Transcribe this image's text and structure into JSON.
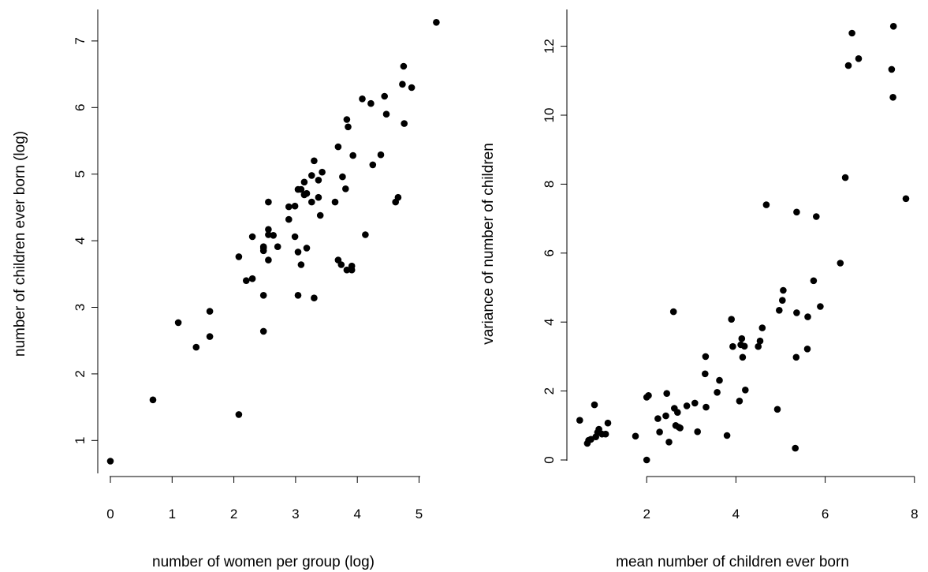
{
  "chart_data": [
    {
      "type": "scatter",
      "title": "",
      "xlabel": "number of women per group (log)",
      "ylabel": "number of children ever born (log)",
      "xlim": [
        0,
        5.3
      ],
      "ylim": [
        0.7,
        7.3
      ],
      "xticks": [
        "0",
        "1",
        "2",
        "3",
        "4",
        "5"
      ],
      "yticks": [
        "1",
        "2",
        "3",
        "4",
        "5",
        "6",
        "7"
      ],
      "grid": false,
      "series": [
        {
          "x": [
            0,
            0.69,
            1.1,
            1.39,
            1.61,
            1.61,
            2.08,
            2.08,
            2.2,
            2.3,
            2.3,
            2.48,
            2.48,
            2.48,
            2.48,
            2.48,
            2.56,
            2.56,
            2.56,
            2.56,
            2.64,
            2.71,
            2.89,
            2.89,
            2.99,
            2.99,
            3.04,
            3.04,
            3.04,
            3.09,
            3.09,
            3.14,
            3.14,
            3.18,
            3.18,
            3.26,
            3.26,
            3.3,
            3.3,
            3.37,
            3.37,
            3.4,
            3.43,
            3.64,
            3.69,
            3.69,
            3.74,
            3.76,
            3.81,
            3.83,
            3.83,
            3.85,
            3.91,
            3.91,
            3.93,
            4.08,
            4.13,
            4.22,
            4.25,
            4.38,
            4.44,
            4.47,
            4.62,
            4.66,
            4.73,
            4.75,
            4.76,
            4.88,
            5.28
          ],
          "y": [
            0.69,
            1.61,
            2.77,
            2.4,
            2.56,
            2.94,
            1.39,
            3.76,
            3.4,
            3.43,
            4.06,
            2.64,
            3.18,
            3.85,
            3.89,
            3.91,
            3.71,
            4.09,
            4.17,
            4.58,
            4.08,
            3.91,
            4.32,
            4.51,
            4.06,
            4.52,
            3.18,
            3.83,
            4.77,
            3.64,
            4.77,
            4.69,
            4.88,
            3.89,
            4.71,
            4.58,
            4.98,
            3.14,
            5.2,
            4.65,
            4.91,
            4.38,
            5.03,
            4.58,
            3.71,
            5.41,
            3.64,
            4.96,
            4.78,
            5.82,
            3.56,
            5.71,
            3.56,
            3.62,
            5.28,
            6.13,
            4.09,
            6.06,
            5.14,
            5.29,
            6.17,
            5.9,
            4.58,
            4.65,
            6.35,
            6.62,
            5.76,
            6.3,
            7.28
          ]
        }
      ]
    },
    {
      "type": "scatter",
      "title": "",
      "xlabel": "mean number of children ever born",
      "ylabel": "variance of number of children",
      "xlim": [
        0.5,
        7.8
      ],
      "ylim": [
        0,
        12.6
      ],
      "xticks": [
        "2",
        "4",
        "6",
        "8"
      ],
      "yticks": [
        "0",
        "2",
        "4",
        "6",
        "8",
        "10",
        "12"
      ],
      "grid": false,
      "series": [
        {
          "x": [
            0.5,
            0.67,
            0.7,
            0.75,
            0.83,
            0.86,
            0.9,
            0.93,
            1.0,
            1.08,
            1.13,
            1.75,
            2.0,
            2.0,
            2.04,
            2.25,
            2.29,
            2.43,
            2.45,
            2.5,
            2.6,
            2.62,
            2.65,
            2.69,
            2.72,
            2.75,
            2.9,
            3.08,
            3.14,
            3.31,
            3.32,
            3.33,
            3.58,
            3.63,
            3.8,
            3.9,
            3.93,
            4.08,
            4.11,
            4.13,
            4.15,
            4.19,
            4.21,
            4.5,
            4.54,
            4.59,
            4.68,
            4.93,
            4.97,
            5.04,
            5.06,
            5.33,
            5.35,
            5.36,
            5.36,
            5.6,
            5.61,
            5.74,
            5.8,
            5.89,
            6.34,
            6.45,
            6.52,
            6.6,
            6.75,
            7.49,
            7.52,
            7.53,
            7.81
          ],
          "y": [
            1.15,
            0.48,
            0.57,
            0.6,
            1.6,
            0.67,
            0.8,
            0.89,
            0.75,
            0.75,
            1.07,
            0.69,
            0.0,
            1.82,
            1.87,
            1.2,
            0.81,
            1.28,
            1.93,
            0.52,
            4.3,
            1.5,
            1.0,
            1.38,
            0.95,
            0.93,
            1.57,
            1.65,
            0.82,
            2.5,
            3.0,
            1.53,
            1.96,
            2.31,
            0.71,
            4.08,
            3.29,
            1.71,
            3.34,
            3.52,
            2.98,
            3.3,
            2.03,
            3.29,
            3.45,
            3.83,
            7.4,
            1.47,
            4.34,
            4.63,
            4.92,
            0.34,
            2.98,
            4.27,
            7.19,
            3.22,
            4.15,
            5.2,
            7.06,
            4.45,
            5.71,
            8.19,
            11.44,
            12.38,
            11.64,
            11.33,
            10.52,
            12.58,
            7.58
          ]
        }
      ]
    }
  ]
}
